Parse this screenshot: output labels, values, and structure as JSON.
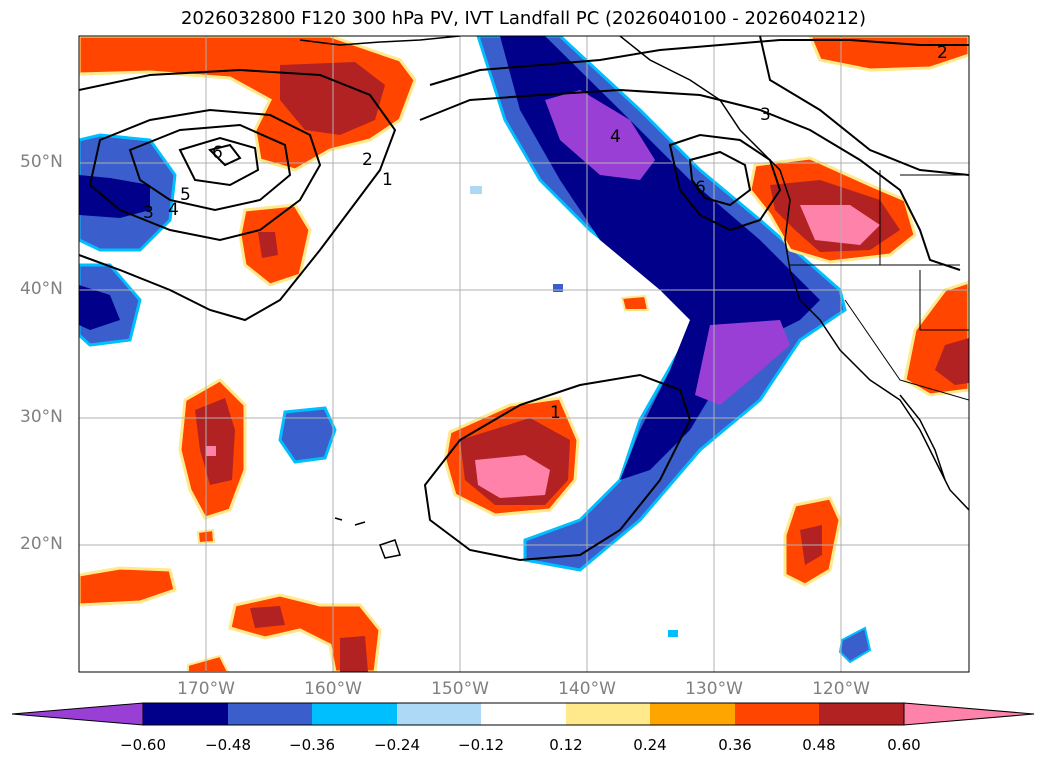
{
  "title": "2026032800 F120 300 hPa PV, IVT Landfall PC (2026040100 - 2026040212)",
  "lat_labels": [
    "50°N",
    "40°N",
    "30°N",
    "20°N"
  ],
  "lon_labels": [
    "170°W",
    "160°W",
    "150°W",
    "140°W",
    "130°W",
    "120°W"
  ],
  "colorbar": {
    "ticks": [
      "−0.60",
      "−0.48",
      "−0.36",
      "−0.24",
      "−0.12",
      "0.12",
      "0.24",
      "0.36",
      "0.48",
      "0.60"
    ],
    "colors": [
      "#9a3fd6",
      "#00008b",
      "#3a5fcd",
      "#00bfff",
      "#add8f6",
      "#ffffff",
      "#ffe98a",
      "#ffa500",
      "#ff4500",
      "#b22222",
      "#ff82ab"
    ]
  },
  "contour_labels": [
    "6",
    "5",
    "4",
    "3",
    "2",
    "1",
    "4",
    "3",
    "6",
    "2",
    "1"
  ]
}
